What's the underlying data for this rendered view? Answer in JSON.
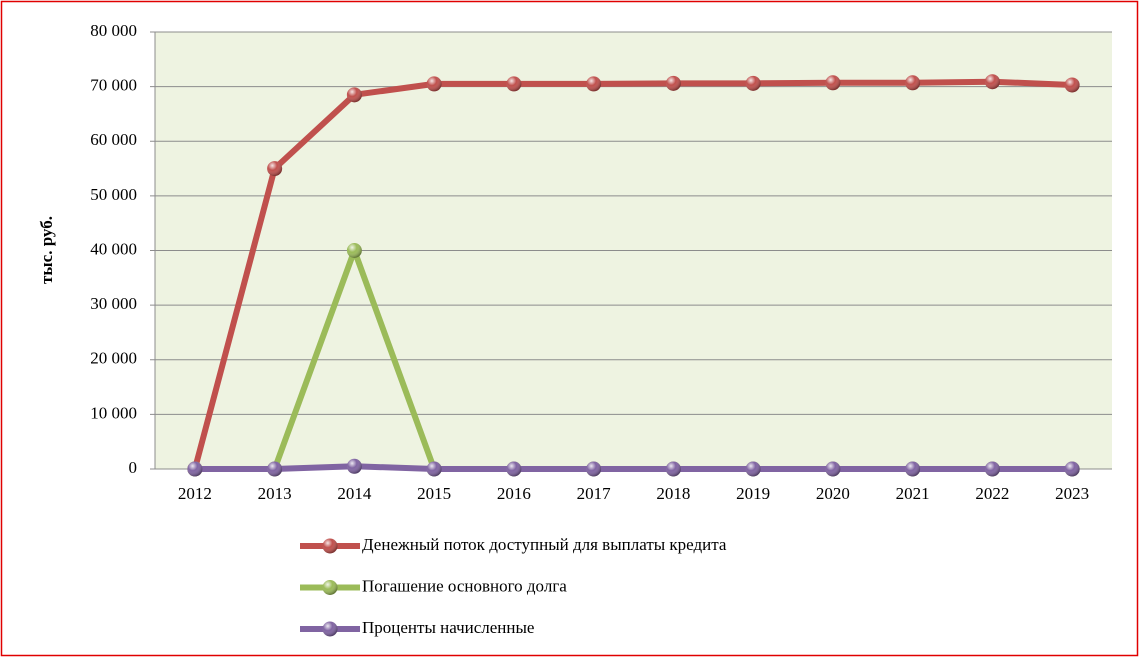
{
  "chart_data": {
    "type": "line",
    "y_label": "тыс. руб.",
    "categories": [
      "2012",
      "2013",
      "2014",
      "2015",
      "2016",
      "2017",
      "2018",
      "2019",
      "2020",
      "2021",
      "2022",
      "2023"
    ],
    "series": [
      {
        "name": "Денежный поток доступный для выплаты кредита",
        "color": "#c0504d",
        "values": [
          0,
          55000,
          68500,
          70500,
          70500,
          70500,
          70600,
          70600,
          70700,
          70700,
          70900,
          70300
        ]
      },
      {
        "name": "Погашение основного долга",
        "color": "#9bbb59",
        "values": [
          0,
          0,
          40000,
          0,
          0,
          0,
          0,
          0,
          0,
          0,
          0,
          0
        ]
      },
      {
        "name": "Проценты начисленные",
        "color": "#8064a2",
        "values": [
          0,
          0,
          500,
          0,
          0,
          0,
          0,
          0,
          0,
          0,
          0,
          0
        ]
      }
    ],
    "ylim": [
      0,
      80000
    ],
    "yticks": [
      {
        "value": 0,
        "label": "0"
      },
      {
        "value": 10000,
        "label": "10 000"
      },
      {
        "value": 20000,
        "label": "20 000"
      },
      {
        "value": 30000,
        "label": "30 000"
      },
      {
        "value": 40000,
        "label": "40 000"
      },
      {
        "value": 50000,
        "label": "50 000"
      },
      {
        "value": 60000,
        "label": "60 000"
      },
      {
        "value": 70000,
        "label": "70 000"
      },
      {
        "value": 80000,
        "label": "80 000"
      }
    ],
    "grid": true,
    "legend": "bottom"
  }
}
